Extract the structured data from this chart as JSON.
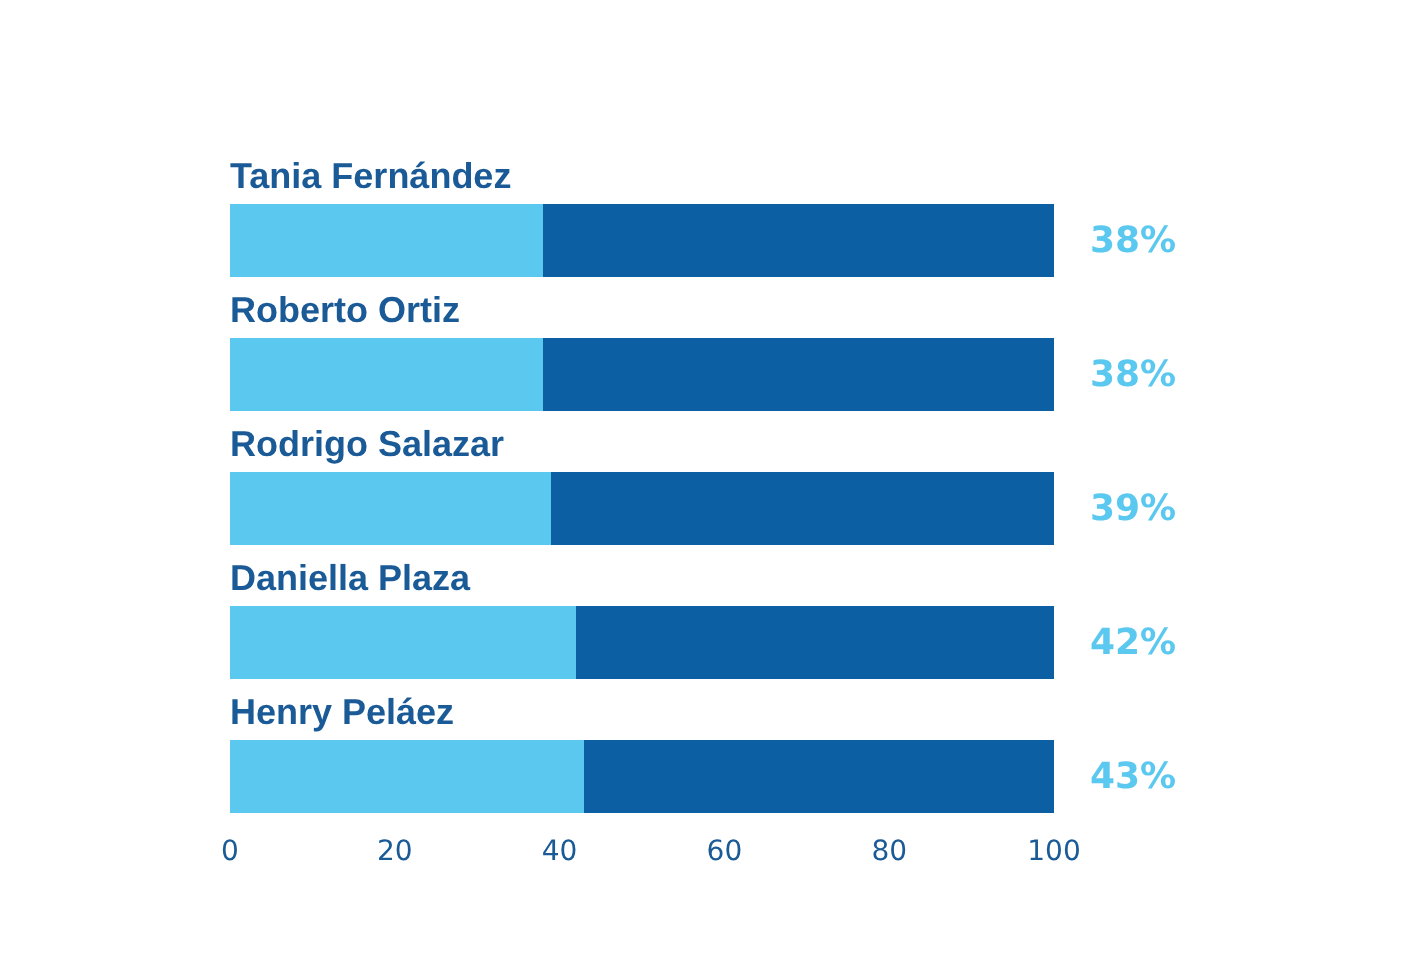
{
  "chart_data": {
    "type": "bar",
    "orientation": "horizontal",
    "stacked": true,
    "categories": [
      "Tania Fernández",
      "Roberto Ortiz",
      "Rodrigo Salazar",
      "Daniella Plaza",
      "Henry Peláez"
    ],
    "series": [
      {
        "color": "#5bc8f0",
        "values": [
          38,
          38,
          39,
          42,
          43
        ],
        "value_labels": [
          "38%",
          "38%",
          "39%",
          "42%",
          "43%"
        ]
      },
      {
        "color": "#0d5fa3",
        "values": [
          62,
          62,
          61,
          58,
          57
        ]
      }
    ],
    "xlim": [
      0,
      100
    ],
    "xticks": [
      0,
      20,
      40,
      60,
      80,
      100
    ]
  }
}
